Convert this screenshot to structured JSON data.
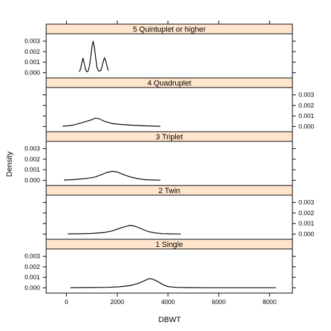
{
  "colors": {
    "strip": "#ffe5cc",
    "frame": "#000000",
    "line": "#000000",
    "background": "#ffffff"
  },
  "chart_data": {
    "type": "line",
    "plot": "lattice density plot",
    "xlabel": "DBWT",
    "ylabel": "Density",
    "xlim": [
      -800,
      8900
    ],
    "ylim": [
      -0.0003,
      0.0035
    ],
    "x_ticks": [
      0,
      2000,
      4000,
      6000,
      8000
    ],
    "x_tick_labels": [
      "0",
      "2000",
      "4000",
      "6000",
      "8000"
    ],
    "y_ticks": [
      0.0,
      0.001,
      0.002,
      0.003
    ],
    "y_tick_labels": [
      "0.000",
      "0.001",
      "0.002",
      "0.003"
    ],
    "panels": [
      {
        "label": "1 Single",
        "y_axis_side": "left",
        "series": [
          {
            "x": [
              150,
              800,
              1600,
              2100,
              2500,
              2800,
              3000,
              3200,
              3300,
              3400,
              3600,
              3800,
              4000,
              4300,
              4800,
              5500,
              6500,
              7500,
              8250
            ],
            "y": [
              1e-05,
              3e-05,
              5e-05,
              0.0001,
              0.00022,
              0.0004,
              0.0006,
              0.00083,
              0.00087,
              0.00083,
              0.0006,
              0.0003,
              0.00012,
              5e-05,
              2e-05,
              1e-05,
              1e-05,
              1e-05,
              1e-05
            ]
          }
        ]
      },
      {
        "label": "2 Twin",
        "y_axis_side": "right",
        "series": [
          {
            "x": [
              50,
              500,
              1000,
              1500,
              1800,
              2100,
              2300,
              2500,
              2700,
              2900,
              3200,
              3500,
              3800,
              4100,
              4500
            ],
            "y": [
              2e-05,
              3e-05,
              6e-05,
              0.00015,
              0.0003,
              0.00055,
              0.0007,
              0.00082,
              0.00075,
              0.00055,
              0.00025,
              0.0001,
              4e-05,
              2e-05,
              1e-05
            ]
          }
        ]
      },
      {
        "label": "3 Triplet",
        "y_axis_side": "left",
        "series": [
          {
            "x": [
              -100,
              300,
              700,
              1100,
              1400,
              1600,
              1800,
              2000,
              2200,
              2500,
              2800,
              3100,
              3400,
              3700
            ],
            "y": [
              2e-05,
              7e-05,
              0.00015,
              0.00028,
              0.00055,
              0.00075,
              0.00085,
              0.00078,
              0.00058,
              0.00033,
              0.00015,
              6e-05,
              3e-05,
              1e-05
            ]
          }
        ]
      },
      {
        "label": "4 Quadruplet",
        "y_axis_side": "right",
        "series": [
          {
            "x": [
              -150,
              200,
              500,
              800,
              1000,
              1150,
              1300,
              1500,
              1800,
              2100,
              2500,
              3000,
              3500,
              3700
            ],
            "y": [
              2e-05,
              0.0001,
              0.00028,
              0.0005,
              0.00065,
              0.0008,
              0.00072,
              0.00048,
              0.00028,
              0.0002,
              0.00013,
              7e-05,
              3e-05,
              2e-05
            ]
          }
        ]
      },
      {
        "label": "5 Quintuplet or higher",
        "y_axis_side": "left",
        "series": [
          {
            "x": [
              500,
              550,
              600,
              650,
              700,
              750,
              800,
              850,
              900,
              950,
              1000,
              1050,
              1100,
              1150,
              1200,
              1250,
              1300,
              1350,
              1400,
              1450,
              1500,
              1550,
              1600,
              1650
            ],
            "y": [
              0.0001,
              0.0003,
              0.0009,
              0.0014,
              0.0009,
              0.0003,
              8e-05,
              0.00015,
              0.0006,
              0.0014,
              0.0024,
              0.003,
              0.0024,
              0.0014,
              0.0005,
              0.0002,
              0.00015,
              0.0002,
              0.0006,
              0.0011,
              0.0014,
              0.0011,
              0.0006,
              0.0002
            ]
          }
        ]
      }
    ]
  }
}
